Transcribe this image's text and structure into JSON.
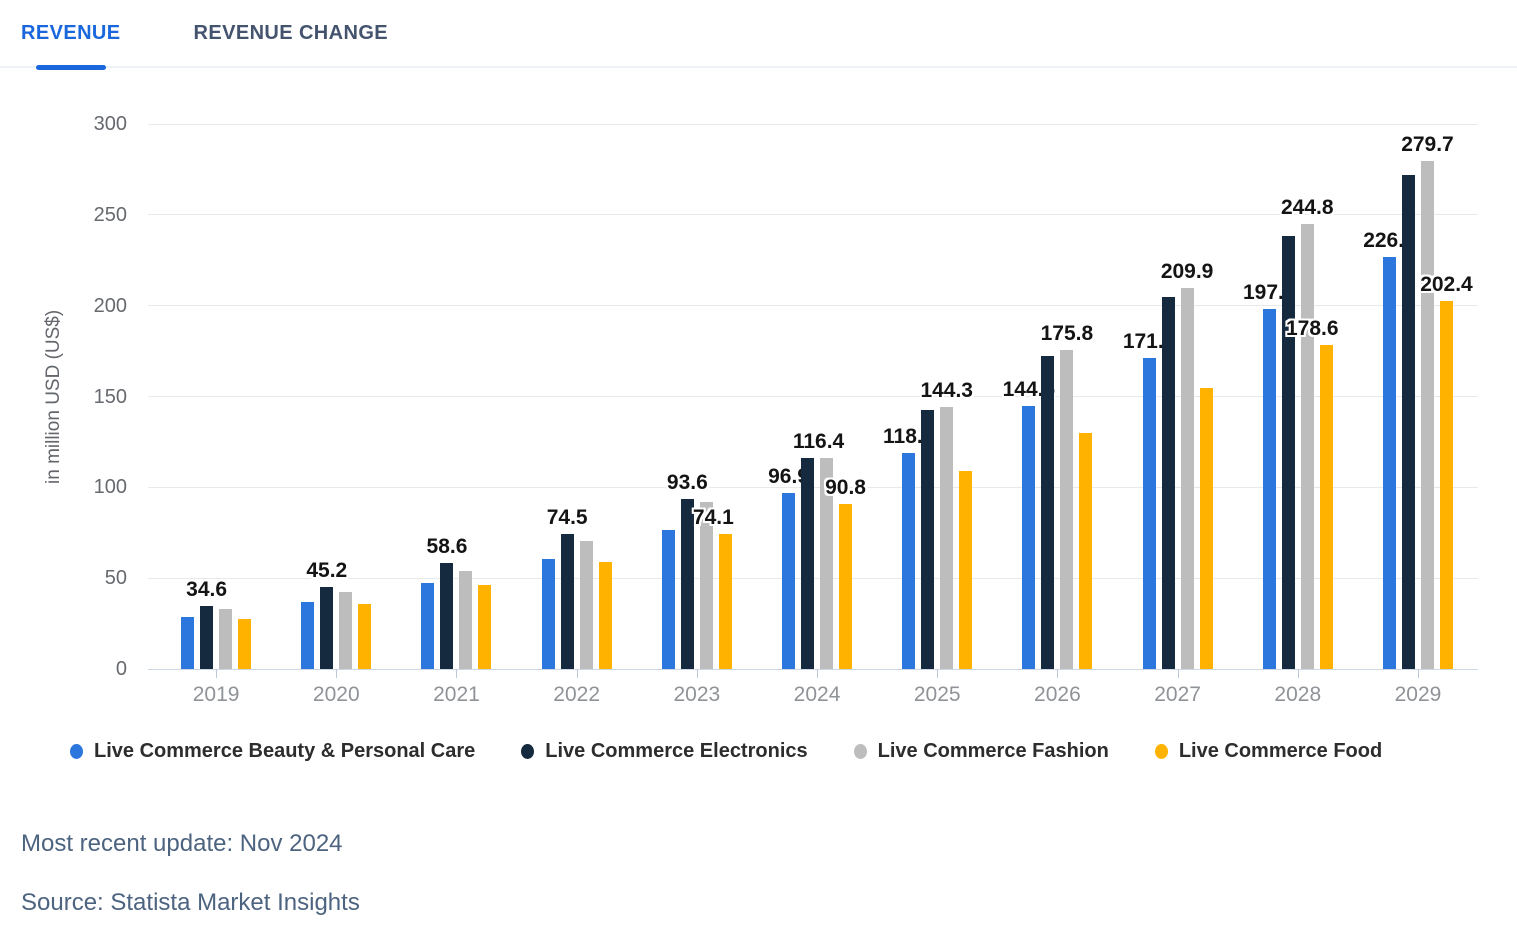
{
  "tabs": [
    {
      "label": "REVENUE",
      "active": true
    },
    {
      "label": "REVENUE CHANGE",
      "active": false
    }
  ],
  "theme": {
    "accent_blue": "#1a67dd",
    "inactive_tab": "#44546e",
    "footer_text": "#4d6480"
  },
  "chart_data": {
    "type": "bar",
    "title": "",
    "xlabel": "",
    "ylabel": "in million USD (US$)",
    "ylim": [
      0,
      300
    ],
    "yticks": [
      0,
      50,
      100,
      150,
      200,
      250,
      300
    ],
    "grid": true,
    "legend_position": "bottom",
    "categories": [
      "2019",
      "2020",
      "2021",
      "2022",
      "2023",
      "2024",
      "2025",
      "2026",
      "2027",
      "2028",
      "2029"
    ],
    "series": [
      {
        "name": "Live Commerce Beauty & Personal Care",
        "color": "#2c77de",
        "values": [
          28.6,
          36.8,
          47.5,
          60.8,
          76.3,
          96.9,
          118.7,
          144.6,
          171.0,
          197.9,
          226.8
        ],
        "labeled_indices": [
          5,
          6,
          7,
          8,
          9,
          10
        ],
        "label_dx": {}
      },
      {
        "name": "Live Commerce Electronics",
        "color": "#15293f",
        "values": [
          34.6,
          45.2,
          58.6,
          74.5,
          93.6,
          116.0,
          142.4,
          172.2,
          204.9,
          238.5,
          272.1
        ],
        "labeled_indices": [
          0,
          1,
          2,
          3,
          4
        ],
        "label_dx": {}
      },
      {
        "name": "Live Commerce Fashion",
        "color": "#bdbdbd",
        "values": [
          33.1,
          42.5,
          54.0,
          70.3,
          92.0,
          116.4,
          144.3,
          175.8,
          209.9,
          244.8,
          279.7
        ],
        "labeled_indices": [
          5,
          6,
          7,
          8,
          9,
          10
        ],
        "label_dx": {
          "5": -8
        }
      },
      {
        "name": "Live Commerce Food",
        "color": "#ffb300",
        "values": [
          27.5,
          35.6,
          46.0,
          58.7,
          74.1,
          90.8,
          108.8,
          130.0,
          154.6,
          178.6,
          202.4
        ],
        "labeled_indices": [
          4,
          5,
          9,
          10
        ],
        "label_dx": {
          "4": -12,
          "9": -14
        }
      }
    ]
  },
  "footer": {
    "update_text": "Most recent update: Nov 2024",
    "source_text": "Source: Statista Market Insights"
  }
}
